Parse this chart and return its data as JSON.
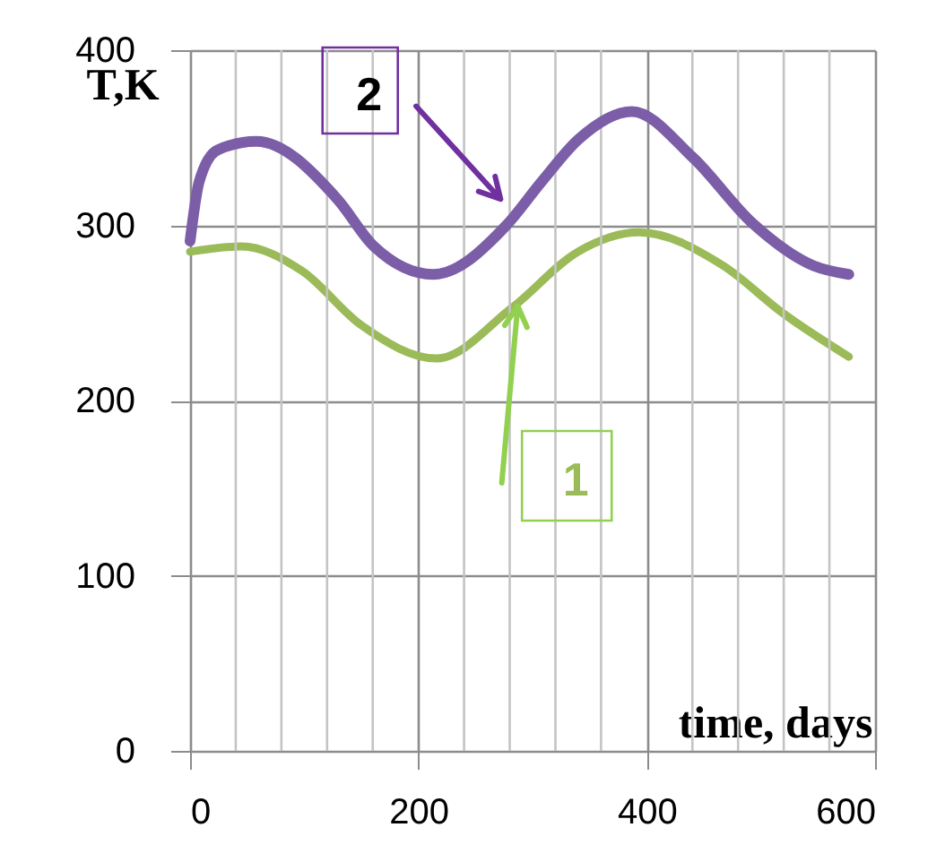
{
  "chart_data": {
    "type": "line",
    "xlabel": "time, days",
    "ylabel": "T,K",
    "xlim": [
      0,
      600
    ],
    "ylim": [
      0,
      400
    ],
    "xticks": [
      0,
      {
        "value": 40,
        "label": null
      },
      {
        "value": 80,
        "label": null
      },
      {
        "value": 120,
        "label": null
      },
      {
        "value": 160,
        "label": null
      },
      200,
      {
        "value": 240,
        "label": null
      },
      {
        "value": 280,
        "label": null
      },
      {
        "value": 320,
        "label": null
      },
      {
        "value": 360,
        "label": null
      },
      400,
      {
        "value": 440,
        "label": null
      },
      {
        "value": 480,
        "label": null
      },
      {
        "value": 520,
        "label": null
      },
      {
        "value": 560,
        "label": null
      },
      600
    ],
    "yticks": [
      0,
      100,
      200,
      300,
      400
    ],
    "grid": true,
    "series": [
      {
        "name": "1",
        "color": "#9bbb59",
        "x": [
          0,
          45,
          98,
          150,
          216,
          282,
          340,
          393,
          467,
          519,
          577
        ],
        "values": [
          285,
          288,
          274,
          243,
          224,
          253,
          285,
          296,
          277,
          250,
          225
        ]
      },
      {
        "name": "2",
        "color": "#7b5ea7",
        "x": [
          0,
          8,
          24,
          58,
          129,
          161,
          213,
          277,
          308,
          340,
          387,
          440,
          493,
          546,
          577
        ],
        "values": [
          291,
          325,
          343,
          348,
          315,
          288,
          272,
          300,
          325,
          349,
          365,
          339,
          301,
          277,
          272
        ]
      }
    ]
  }
}
